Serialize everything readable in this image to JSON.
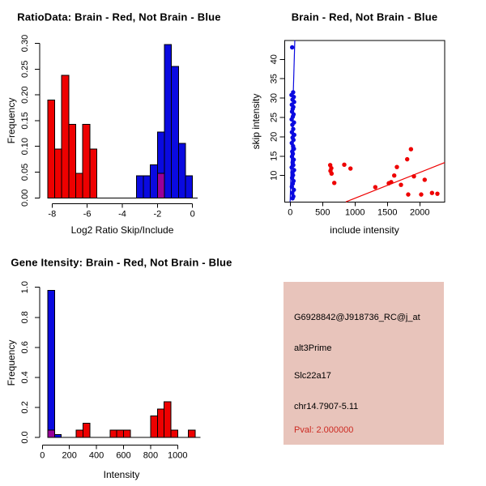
{
  "colors": {
    "red": "#ee0000",
    "blue": "#0a0ae0",
    "purple": "#990099",
    "axis": "#000000",
    "info_bg": "#e8c4bb",
    "pval_red": "#cc2a22"
  },
  "chart_data": [
    {
      "type": "bar",
      "title": "RatioData: Brain - Red, Not Brain - Blue",
      "xlabel": "Log2 Ratio Skip/Include",
      "ylabel": "Frequency",
      "xlim": [
        -8.8,
        0.43
      ],
      "ylim": [
        0,
        0.31
      ],
      "x_ticks": [
        -8,
        -6,
        -4,
        -2,
        0
      ],
      "x_tick_labels": [
        "-8",
        "-6",
        "-4",
        "-2",
        "0"
      ],
      "y_ticks": [
        0,
        0.05,
        0.1,
        0.15,
        0.2,
        0.25,
        0.3
      ],
      "y_tick_labels": [
        "0.00",
        "0.05",
        "0.10",
        "0.15",
        "0.20",
        "0.25",
        "0.30"
      ],
      "baseline_span": [
        -8.25,
        0.3
      ],
      "series": [
        {
          "name": "brain-red",
          "color": "red",
          "bin_width": 0.4,
          "bins": [
            [
              -8.25,
              0.19
            ],
            [
              -7.85,
              0.095
            ],
            [
              -7.45,
              0.238
            ],
            [
              -7.05,
              0.143
            ],
            [
              -6.65,
              0.048
            ],
            [
              -6.25,
              0.143
            ],
            [
              -5.85,
              0.095
            ]
          ]
        },
        {
          "name": "not-brain-blue",
          "color": "blue",
          "bin_width": 0.4,
          "bins": [
            [
              -3.2,
              0.043
            ],
            [
              -2.8,
              0.043
            ],
            [
              -2.4,
              0.064
            ],
            [
              -2.0,
              0.128
            ],
            [
              -1.6,
              0.298
            ],
            [
              -1.2,
              0.255
            ],
            [
              -0.8,
              0.106
            ],
            [
              -0.4,
              0.043
            ]
          ]
        },
        {
          "name": "overlap-purple",
          "color": "purple",
          "bin_width": 0.4,
          "bins": [
            [
              -2.0,
              0.048
            ]
          ]
        }
      ]
    },
    {
      "type": "scatter",
      "title": "Brain - Red, Not Brain - Blue",
      "xlabel": "include intensity",
      "ylabel": "skip intensity",
      "xlim": [
        -82,
        2384
      ],
      "ylim": [
        3.2,
        44.9
      ],
      "x_ticks": [
        0,
        500,
        1000,
        1500,
        2000
      ],
      "x_tick_labels": [
        "0",
        "500",
        "1000",
        "1500",
        "2000"
      ],
      "y_ticks": [
        10,
        15,
        20,
        25,
        30,
        35,
        40
      ],
      "y_tick_labels": [
        "10",
        "15",
        "20",
        "25",
        "30",
        "35",
        "40"
      ],
      "series": [
        {
          "name": "not-brain-blue",
          "color": "blue",
          "points": [
            [
              30,
              43.1
            ],
            [
              45,
              31.5
            ],
            [
              20,
              30.8
            ],
            [
              55,
              30.3
            ],
            [
              35,
              29.6
            ],
            [
              60,
              29.0
            ],
            [
              25,
              28.3
            ],
            [
              48,
              27.7
            ],
            [
              38,
              27.2
            ],
            [
              28,
              26.5
            ],
            [
              52,
              25.8
            ],
            [
              40,
              25.2
            ],
            [
              22,
              24.5
            ],
            [
              58,
              23.7
            ],
            [
              33,
              23.1
            ],
            [
              46,
              22.0
            ],
            [
              26,
              21.2
            ],
            [
              62,
              20.5
            ],
            [
              36,
              19.8
            ],
            [
              50,
              19.2
            ],
            [
              24,
              18.4
            ],
            [
              44,
              17.6
            ],
            [
              57,
              16.9
            ],
            [
              31,
              16.2
            ],
            [
              41,
              15.6
            ],
            [
              27,
              14.9
            ],
            [
              54,
              14.1
            ],
            [
              37,
              13.4
            ],
            [
              47,
              12.7
            ],
            [
              23,
              12.1
            ],
            [
              59,
              11.4
            ],
            [
              34,
              10.8
            ],
            [
              43,
              10.1
            ],
            [
              29,
              9.4
            ],
            [
              51,
              8.6
            ],
            [
              39,
              7.9
            ],
            [
              25,
              7.1
            ],
            [
              56,
              6.3
            ],
            [
              32,
              5.5
            ],
            [
              48,
              4.6
            ],
            [
              36,
              4.1
            ]
          ]
        },
        {
          "name": "brain-red",
          "color": "red",
          "points": [
            [
              617,
              12.7
            ],
            [
              634,
              11.9
            ],
            [
              621,
              11.2
            ],
            [
              638,
              10.5
            ],
            [
              680,
              8.1
            ],
            [
              834,
              12.8
            ],
            [
              930,
              11.8
            ],
            [
              1313,
              7.0
            ],
            [
              1521,
              8.0
            ],
            [
              1558,
              8.3
            ],
            [
              1605,
              10.0
            ],
            [
              1646,
              12.2
            ],
            [
              1709,
              7.6
            ],
            [
              1805,
              14.2
            ],
            [
              1821,
              5.1
            ],
            [
              1863,
              16.8
            ],
            [
              1909,
              9.8
            ],
            [
              2021,
              5.1
            ],
            [
              2075,
              8.9
            ],
            [
              2188,
              5.5
            ],
            [
              2271,
              5.3
            ]
          ]
        }
      ],
      "lines": [
        {
          "name": "blue-fit-line",
          "color": "blue",
          "x1": -1.4,
          "y1": 3.2,
          "x2": 70.6,
          "y2": 44.9
        },
        {
          "name": "red-fit-line",
          "color": "red",
          "x1": 859,
          "y1": 3.2,
          "x2": 2384,
          "y2": 13.35
        }
      ]
    },
    {
      "type": "bar",
      "title": "Gene Itensity: Brain - Red, Not Brain - Blue",
      "xlabel": "Intensity",
      "ylabel": "Frequency",
      "xlim": [
        -70,
        1175
      ],
      "ylim": [
        0,
        1.0
      ],
      "x_ticks": [
        0,
        200,
        400,
        600,
        800,
        1000
      ],
      "x_tick_labels": [
        "0",
        "200",
        "400",
        "600",
        "800",
        "1000"
      ],
      "y_ticks": [
        0,
        0.2,
        0.4,
        0.6,
        0.8,
        1.0
      ],
      "y_tick_labels": [
        "0.0",
        "0.2",
        "0.4",
        "0.6",
        "0.8",
        "1.0"
      ],
      "baseline_span": [
        40,
        1170
      ],
      "series": [
        {
          "name": "not-brain-blue",
          "color": "blue",
          "bin_width": 50,
          "bins": [
            [
              40,
              0.98
            ],
            [
              90,
              0.02
            ]
          ]
        },
        {
          "name": "brain-red",
          "color": "red",
          "bin_width": 50,
          "bins": [
            [
              250,
              0.048
            ],
            [
              300,
              0.095
            ],
            [
              500,
              0.048
            ],
            [
              550,
              0.048
            ],
            [
              600,
              0.048
            ],
            [
              800,
              0.143
            ],
            [
              850,
              0.19
            ],
            [
              900,
              0.238
            ],
            [
              950,
              0.048
            ],
            [
              1080,
              0.048
            ]
          ]
        },
        {
          "name": "overlap-purple",
          "color": "purple",
          "bin_width": 50,
          "bins": [
            [
              40,
              0.048
            ]
          ]
        }
      ]
    }
  ],
  "info_panel": {
    "probe_id": "G6928842@J918736_RC@j_at",
    "event_type": "alt3Prime",
    "gene": "Slc22a17",
    "location": "chr14.7907-5.11",
    "pval_text": "Pval: 2.000000"
  }
}
